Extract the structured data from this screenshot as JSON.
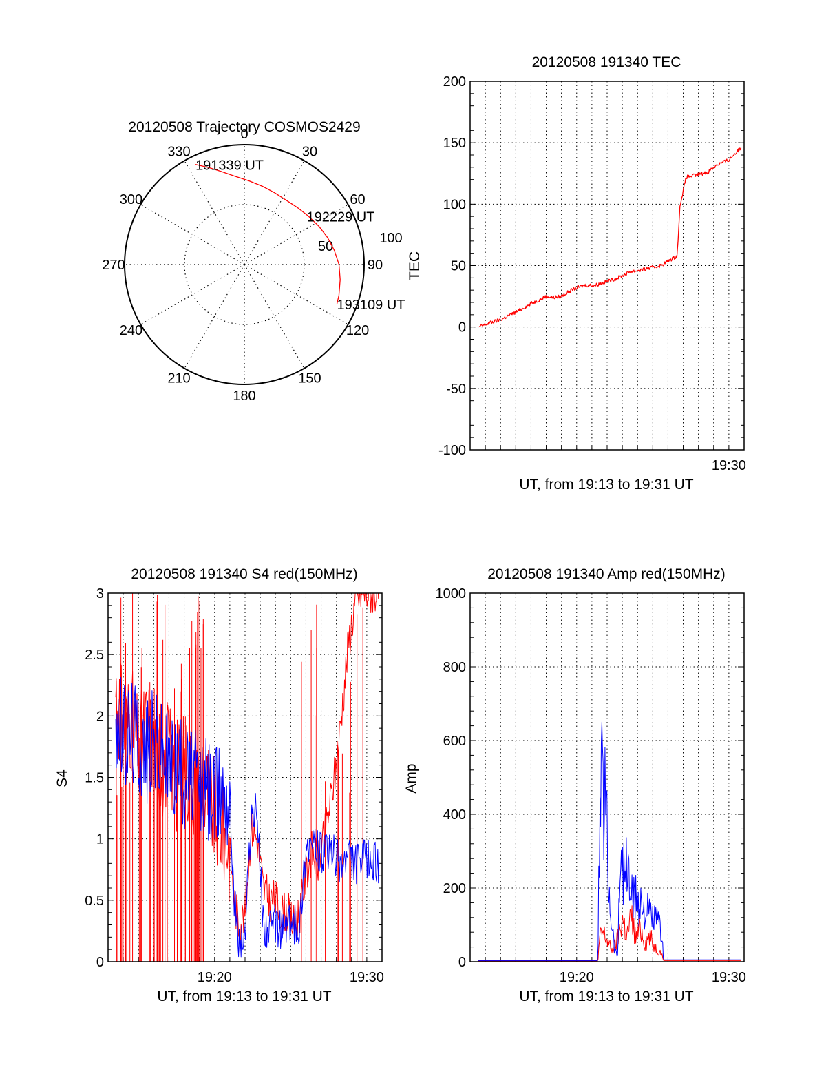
{
  "chart_data": [
    {
      "id": "trajectory",
      "type": "polar",
      "title": "20120508 Trajectory COSMOS2429",
      "angle_labels": [
        "0",
        "30",
        "60",
        "90",
        "120",
        "150",
        "180",
        "210",
        "240",
        "270",
        "300",
        "330"
      ],
      "radial_labels": [
        "50",
        "100"
      ],
      "rlim": [
        0,
        100
      ],
      "grid": true,
      "series": [
        {
          "color": "#ff0000",
          "points": [
            {
              "az": 334,
              "r": 93
            },
            {
              "az": 340,
              "r": 86
            },
            {
              "az": 346,
              "r": 80
            },
            {
              "az": 354,
              "r": 74
            },
            {
              "az": 3,
              "r": 70
            },
            {
              "az": 13,
              "r": 67
            },
            {
              "az": 23,
              "r": 65
            },
            {
              "az": 33,
              "r": 64
            },
            {
              "az": 43,
              "r": 65
            },
            {
              "az": 53,
              "r": 67
            },
            {
              "az": 63,
              "r": 70
            },
            {
              "az": 72,
              "r": 73
            },
            {
              "az": 81,
              "r": 76
            },
            {
              "az": 90,
              "r": 79
            },
            {
              "az": 99,
              "r": 81
            },
            {
              "az": 108,
              "r": 83
            },
            {
              "az": 113,
              "r": 84
            }
          ]
        }
      ],
      "annotations": [
        {
          "text": "191339 UT",
          "az": 334,
          "r": 93
        },
        {
          "text": "192229 UT",
          "az": 52,
          "r": 66
        },
        {
          "text": "193109 UT",
          "az": 113,
          "r": 84
        }
      ]
    },
    {
      "id": "tec",
      "type": "line",
      "title": "20120508 191340 TEC",
      "ylabel": "TEC",
      "xlabel": "UT, from 19:13 to 19:31 UT",
      "xlim": [
        0,
        18
      ],
      "ylim": [
        -100,
        200
      ],
      "yticks": [
        -100,
        -50,
        0,
        50,
        100,
        150,
        200
      ],
      "xtick_labels": [
        {
          "at": 17,
          "label": "19:30"
        }
      ],
      "grid": true,
      "series": [
        {
          "color": "#ff0000",
          "x": [
            0.6,
            1.2,
            2,
            3,
            4,
            5,
            5.5,
            6,
            6.8,
            7.5,
            8.2,
            9,
            9.7,
            10.5,
            11.5,
            12.5,
            13.2,
            13.6,
            13.8,
            14.2,
            15,
            15.6,
            16.2,
            17,
            17.3,
            17.8
          ],
          "y": [
            0,
            3,
            6,
            12,
            19,
            25,
            24,
            25,
            31,
            34,
            34,
            37,
            40,
            45,
            47,
            50,
            55,
            58,
            100,
            122,
            124,
            126,
            132,
            136,
            140,
            146
          ]
        }
      ]
    },
    {
      "id": "s4",
      "type": "line",
      "title": "20120508 191340 S4 red(150MHz)",
      "ylabel": "S4",
      "xlabel": "UT, from 19:13 to 19:31 UT",
      "xlim": [
        0,
        18
      ],
      "ylim": [
        0,
        3
      ],
      "yticks": [
        0,
        0.5,
        1,
        1.5,
        2,
        2.5,
        3
      ],
      "xtick_labels": [
        {
          "at": 7,
          "label": "19:20"
        },
        {
          "at": 17,
          "label": "19:30"
        }
      ],
      "grid": true,
      "series": [
        {
          "color": "#ff0000",
          "x": [
            0.5,
            1,
            1.5,
            2,
            2.5,
            3,
            3.5,
            4,
            4.5,
            5,
            5.5,
            6,
            6.5,
            7,
            7.5,
            8,
            8.3,
            8.6,
            9,
            9.4,
            9.8,
            10.2,
            10.6,
            11,
            11.4,
            11.8,
            12.2,
            12.6,
            13,
            13.4,
            13.8,
            14.2,
            14.6,
            15,
            15.4,
            15.8,
            16.2,
            16.6,
            17,
            17.4,
            17.8
          ],
          "y": [
            2.2,
            1.9,
            2.0,
            1.7,
            1.9,
            1.8,
            1.6,
            1.7,
            1.5,
            1.6,
            1.5,
            1.3,
            1.4,
            1.2,
            1.1,
            0.9,
            0.5,
            0.3,
            0.4,
            1.1,
            1.0,
            0.6,
            0.5,
            0.5,
            0.4,
            0.4,
            0.3,
            0.4,
            0.7,
            0.9,
            0.8,
            1.0,
            1.3,
            1.6,
            2.1,
            2.6,
            2.9,
            3.0,
            3.0,
            3.0,
            3.0
          ]
        },
        {
          "color": "#0000ff",
          "x": [
            0.5,
            1,
            1.5,
            2,
            2.5,
            3,
            3.5,
            4,
            4.5,
            5,
            5.5,
            6,
            6.5,
            7,
            7.5,
            8,
            8.3,
            8.6,
            9,
            9.4,
            9.8,
            10.2,
            10.6,
            11,
            11.4,
            11.8,
            12.2,
            12.6,
            13,
            13.4,
            13.8,
            14.2,
            14.6,
            15,
            15.4,
            15.8,
            16.2,
            16.6,
            17,
            17.4,
            17.8
          ],
          "y": [
            2.0,
            1.8,
            1.9,
            1.8,
            1.7,
            1.8,
            1.7,
            1.6,
            1.6,
            1.5,
            1.5,
            1.4,
            1.4,
            1.3,
            1.4,
            1.3,
            0.5,
            0.15,
            0.2,
            1.2,
            1.2,
            0.3,
            0.25,
            0.3,
            0.25,
            0.3,
            0.3,
            0.3,
            0.95,
            0.95,
            0.9,
            0.85,
            0.9,
            0.85,
            0.8,
            0.85,
            0.8,
            0.8,
            0.85,
            0.8,
            0.8
          ]
        }
      ]
    },
    {
      "id": "amp",
      "type": "line",
      "title": "20120508 191340 Amp red(150MHz)",
      "ylabel": "Amp",
      "xlabel": "UT, from 19:13 to 19:31 UT",
      "xlim": [
        0,
        18
      ],
      "ylim": [
        0,
        1000
      ],
      "yticks": [
        0,
        200,
        400,
        600,
        800,
        1000
      ],
      "xtick_labels": [
        {
          "at": 7,
          "label": "19:20"
        },
        {
          "at": 17,
          "label": "19:30"
        }
      ],
      "grid": true,
      "series": [
        {
          "color": "#ff0000",
          "x": [
            0.5,
            8.4,
            8.5,
            8.7,
            9,
            9.3,
            9.6,
            9.8,
            10,
            10.3,
            10.6,
            10.9,
            11.2,
            11.5,
            11.8,
            12.1,
            12.4,
            12.6,
            12.7,
            17.8
          ],
          "y": [
            2,
            2,
            60,
            80,
            60,
            30,
            50,
            80,
            120,
            70,
            120,
            60,
            90,
            50,
            70,
            40,
            30,
            20,
            3,
            3
          ]
        },
        {
          "color": "#0000ff",
          "x": [
            0.5,
            8.4,
            8.5,
            8.7,
            8.9,
            9.1,
            9.3,
            9.5,
            9.7,
            9.9,
            10.1,
            10.4,
            10.7,
            11,
            11.3,
            11.6,
            11.9,
            12.2,
            12.5,
            12.6,
            12.7,
            17.8
          ],
          "y": [
            3,
            3,
            380,
            500,
            440,
            220,
            120,
            30,
            20,
            330,
            250,
            230,
            160,
            170,
            150,
            130,
            120,
            110,
            90,
            80,
            5,
            5
          ]
        }
      ]
    }
  ]
}
